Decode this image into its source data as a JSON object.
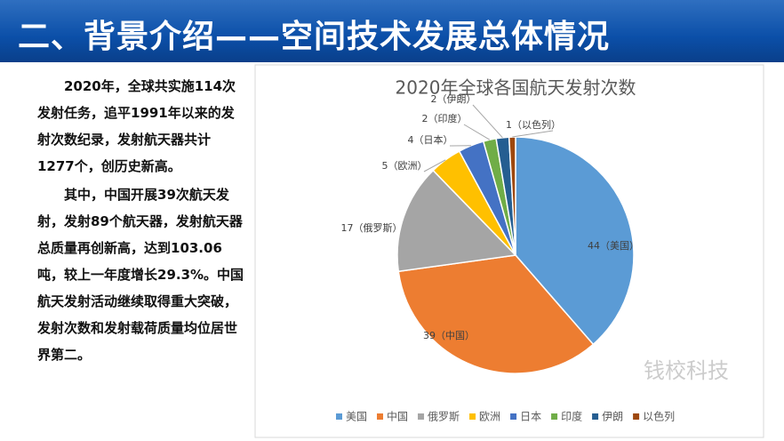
{
  "header": {
    "title": "二、背景介绍——空间技术发展总体情况"
  },
  "paragraphs": [
    "2020年，全球共实施114次发射任务，追平1991年以来的发射次数纪录，发射航天器共计1277个，创历史新高。",
    "其中，中国开展39次航天发射，发射89个航天器，发射航天器总质量再创新高，达到103.06吨，较上一年度增长29.3%。中国航天发射活动继续取得重大突破，发射次数和发射载荷质量均位居世界第二。"
  ],
  "watermark": "钱校科技",
  "chart_data": {
    "type": "pie",
    "title": "2020年全球各国航天发射次数",
    "categories": [
      "美国",
      "中国",
      "俄罗斯",
      "欧洲",
      "日本",
      "印度",
      "伊朗",
      "以色列"
    ],
    "values": [
      44,
      39,
      17,
      5,
      4,
      2,
      2,
      1
    ],
    "value_labels": [
      "44（美国）",
      "39（中国）",
      "17（俄罗斯）",
      "5（欧洲）",
      "4（日本）",
      "2（印度）",
      "2（伊朗）",
      "1（以色列）"
    ],
    "colors": [
      "#5b9bd5",
      "#ed7d31",
      "#a5a5a5",
      "#ffc000",
      "#4472c4",
      "#70ad47",
      "#255e91",
      "#9e480e"
    ],
    "legend": "bottom"
  }
}
